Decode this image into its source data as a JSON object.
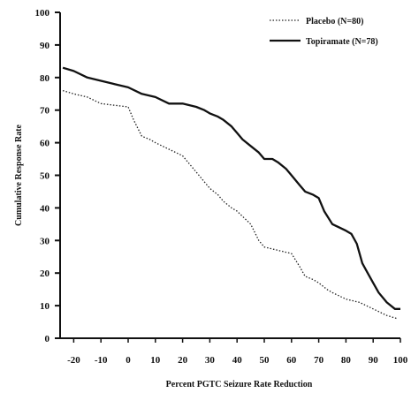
{
  "chart_data": {
    "type": "line",
    "xlabel": "Percent PGTC Seizure Rate Reduction",
    "ylabel": "Cumulative Response Rate",
    "xlim": [
      -25,
      100
    ],
    "ylim": [
      0,
      100
    ],
    "xticks": [
      -20,
      -10,
      0,
      10,
      20,
      30,
      40,
      50,
      60,
      70,
      80,
      90,
      100
    ],
    "yticks": [
      0,
      10,
      20,
      30,
      40,
      50,
      60,
      70,
      80,
      90,
      100
    ],
    "grid": false,
    "legend_position": "top-right",
    "series": [
      {
        "name": "Placebo (N=80)",
        "style": "dotted",
        "color": "#222222",
        "x": [
          -24,
          -20,
          -15,
          -10,
          -5,
          0,
          2,
          5,
          8,
          10,
          15,
          20,
          25,
          28,
          30,
          33,
          35,
          38,
          40,
          45,
          48,
          50,
          55,
          60,
          63,
          65,
          68,
          70,
          73,
          75,
          80,
          85,
          90,
          95,
          99
        ],
        "y": [
          76,
          75,
          74,
          72,
          71.5,
          71,
          67,
          62,
          61,
          60,
          58,
          56,
          51,
          48,
          46,
          44,
          42,
          40,
          39,
          35,
          30,
          28,
          27,
          26,
          22,
          19,
          18,
          17,
          15,
          14,
          12,
          11,
          9,
          7,
          6
        ]
      },
      {
        "name": "Topiramate (N=78)",
        "style": "solid",
        "color": "#111111",
        "x": [
          -24,
          -20,
          -15,
          -10,
          -5,
          0,
          5,
          10,
          15,
          20,
          25,
          28,
          30,
          33,
          35,
          38,
          40,
          42,
          45,
          48,
          50,
          53,
          55,
          58,
          60,
          63,
          65,
          68,
          70,
          72,
          75,
          80,
          82,
          84,
          86,
          88,
          90,
          92,
          95,
          98,
          100
        ],
        "y": [
          83,
          82,
          80,
          79,
          78,
          77,
          75,
          74,
          72,
          72,
          71,
          70,
          69,
          68,
          67,
          65,
          63,
          61,
          59,
          57,
          55,
          55,
          54,
          52,
          50,
          47,
          45,
          44,
          43,
          39,
          35,
          33,
          32,
          29,
          23,
          20,
          17,
          14,
          11,
          9,
          9
        ]
      }
    ]
  }
}
